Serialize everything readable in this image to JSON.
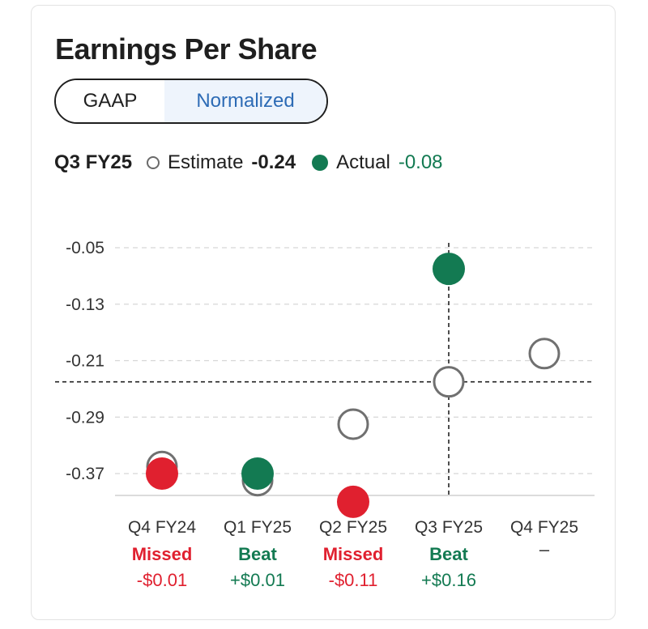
{
  "header": {
    "title": "Earnings Per Share"
  },
  "toggle": {
    "options": [
      "GAAP",
      "Normalized"
    ],
    "selected": "Normalized"
  },
  "legend": {
    "period": "Q3 FY25",
    "estimate_label": "Estimate",
    "estimate_value": "-0.24",
    "actual_label": "Actual",
    "actual_value": "-0.08"
  },
  "colors": {
    "beat": "#137a52",
    "missed": "#e0202f",
    "estimate_ring": "#707070",
    "accent": "#2d6bb5"
  },
  "chart_data": {
    "type": "scatter",
    "title": "Earnings Per Share",
    "y_ticks": [
      -0.05,
      -0.13,
      -0.21,
      -0.29,
      -0.37
    ],
    "y_tick_labels": [
      "-0.05",
      "-0.13",
      "-0.21",
      "-0.29",
      "-0.37"
    ],
    "ylim": [
      -0.405,
      -0.02
    ],
    "grid": true,
    "categories": [
      "Q4 FY24",
      "Q1 FY25",
      "Q2 FY25",
      "Q3 FY25",
      "Q4 FY25"
    ],
    "series": [
      {
        "name": "Estimate",
        "values": [
          -0.36,
          -0.38,
          -0.3,
          -0.24,
          -0.2
        ]
      },
      {
        "name": "Actual",
        "values": [
          -0.37,
          -0.37,
          -0.41,
          -0.08,
          null
        ]
      }
    ],
    "results": [
      "Missed",
      "Beat",
      "Missed",
      "Beat",
      ""
    ],
    "surprises": [
      "-$0.01",
      "+$0.01",
      "-$0.11",
      "+$0.16",
      "–"
    ],
    "highlight": {
      "category": "Q3 FY25",
      "value": -0.24
    }
  }
}
